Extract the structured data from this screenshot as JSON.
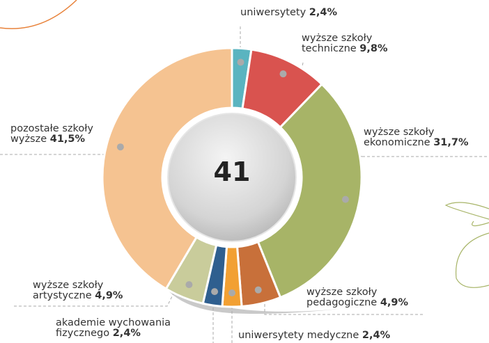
{
  "chart_data": {
    "type": "donut",
    "center_text": "41",
    "categories": [
      "uniwersytety",
      "wyższe szkoły techniczne",
      "wyższe szkoły ekonomiczne",
      "wyższe szkoły pedagogiczne",
      "uniwersytety medyczne",
      "akademie wychowania fizycznego",
      "wyższe szkoły artystyczne",
      "pozostałe szkoły wyższe"
    ],
    "values": [
      2.4,
      9.8,
      31.7,
      4.9,
      2.4,
      2.4,
      4.9,
      41.5
    ],
    "value_labels": [
      "2,4%",
      "9,8%",
      "31,7%",
      "4,9%",
      "2,4%",
      "2,4%",
      "4,9%",
      "41,5%"
    ],
    "colors": [
      "#5ab4c0",
      "#d9534f",
      "#a7b467",
      "#c8703a",
      "#f2a033",
      "#2f5f8f",
      "#c9cc9b",
      "#f5c391"
    ]
  }
}
